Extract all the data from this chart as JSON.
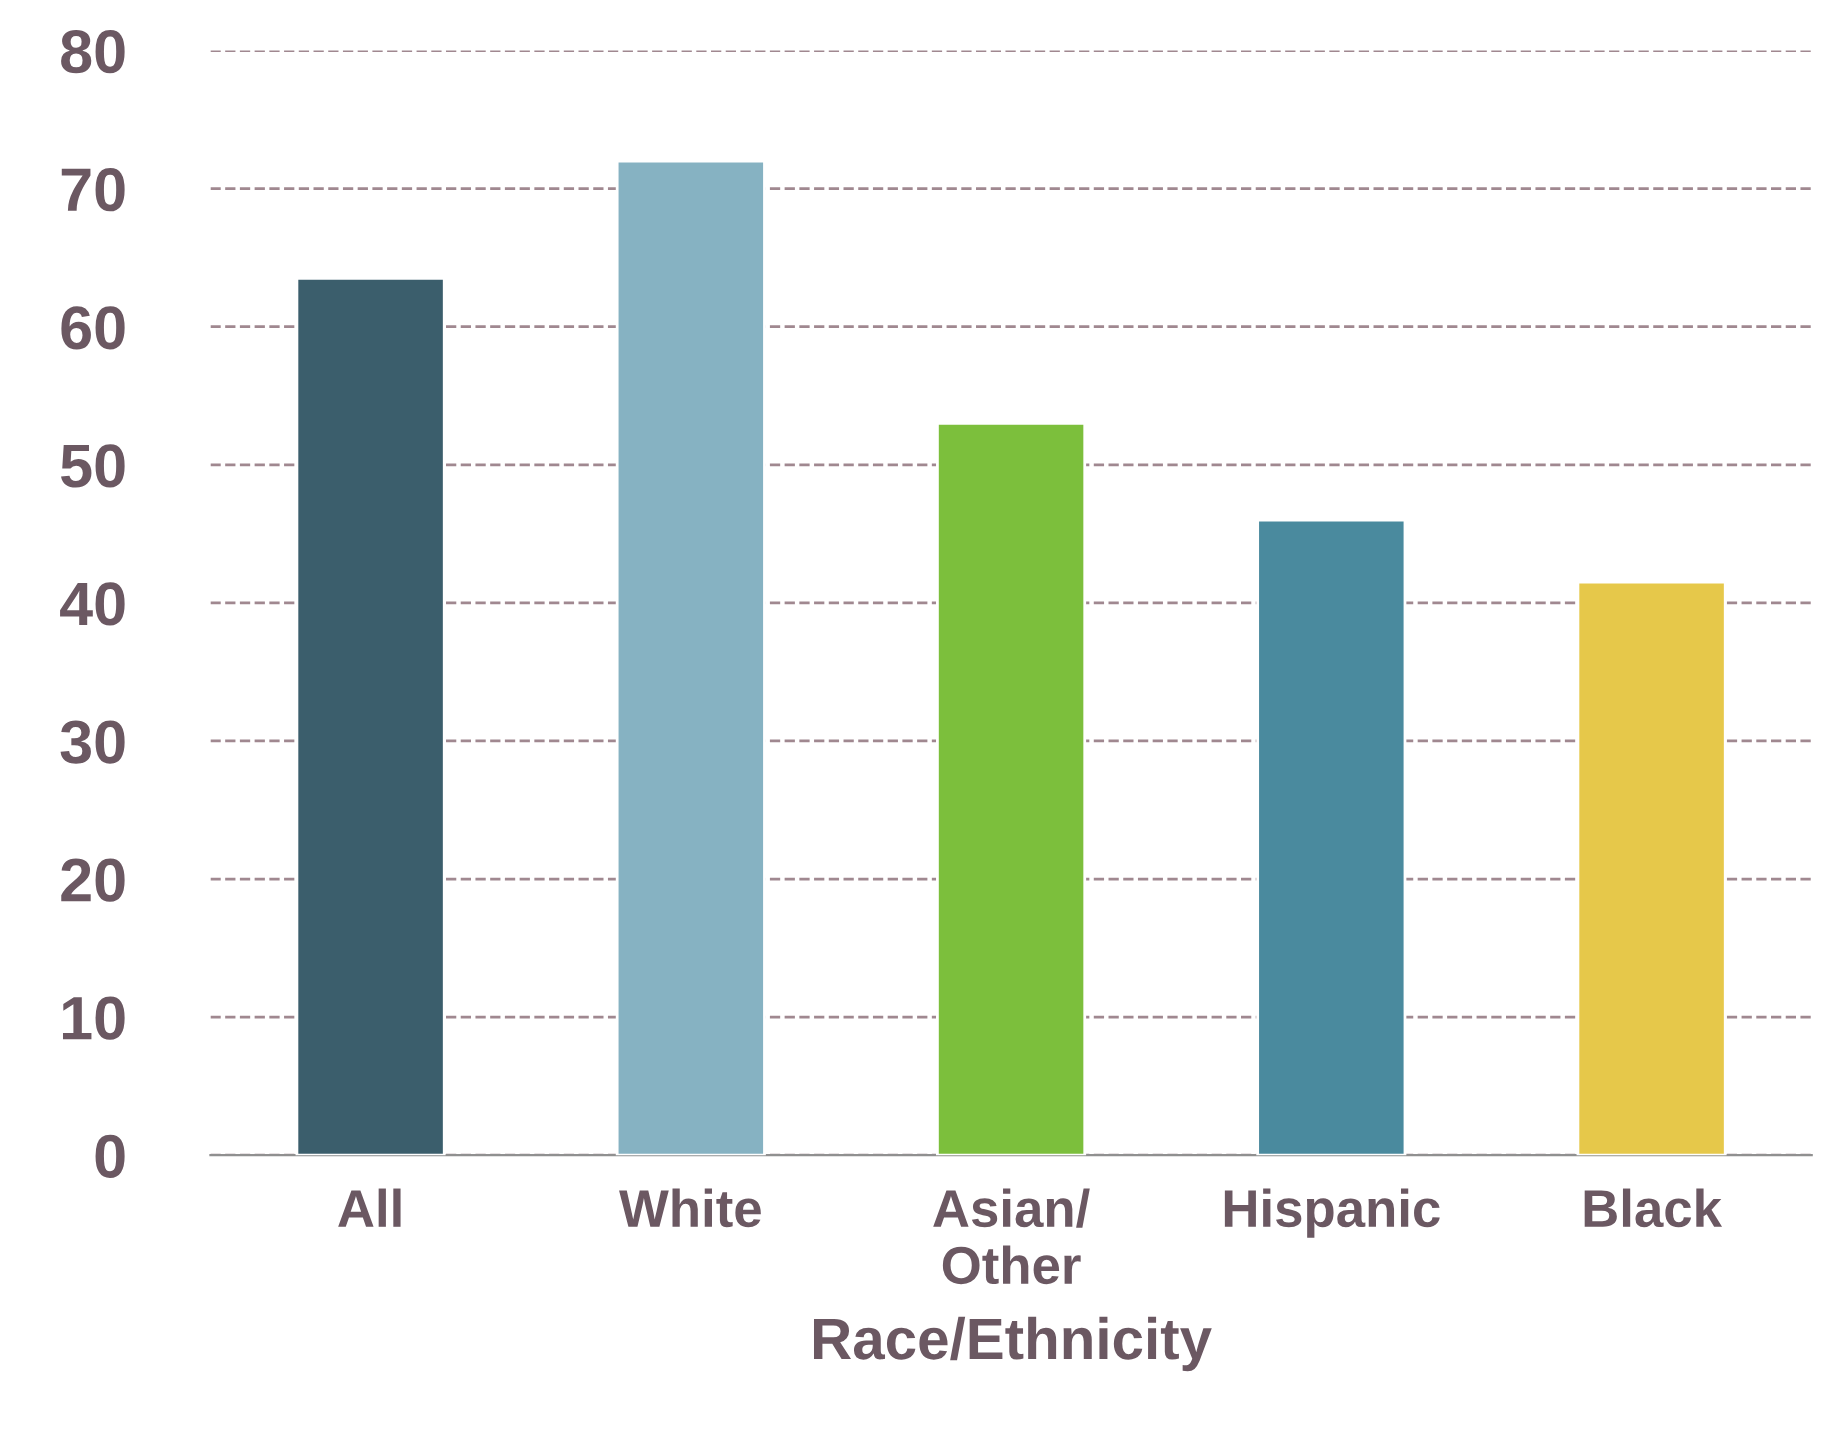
{
  "chart_data": {
    "type": "bar",
    "xlabel": "Race/Ethnicity",
    "categories": [
      "All",
      "White",
      "Asian/\nOther",
      "Hispanic",
      "Black"
    ],
    "values": [
      63.5,
      72,
      53,
      46,
      41.5
    ],
    "colors": [
      "#3b5e6c",
      "#86b2c2",
      "#7cbf3c",
      "#4a8a9e",
      "#e6c84a"
    ],
    "ylim": [
      0,
      80
    ],
    "yticks": [
      0,
      10,
      20,
      30,
      40,
      50,
      60,
      70,
      80
    ],
    "grid": "y"
  }
}
